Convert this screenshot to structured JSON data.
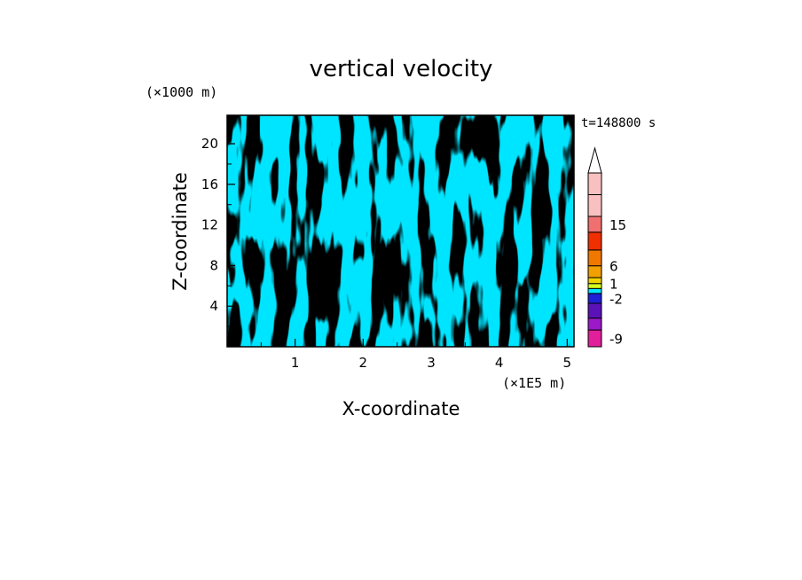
{
  "chart_data": {
    "type": "heatmap",
    "title": "vertical velocity",
    "xlabel": "X-coordinate",
    "ylabel": "Z-coordinate",
    "x_unit_label": "(×1E5 m)",
    "y_unit_label": "(×1000 m)",
    "time_label": "t=148800 s",
    "xlim": [
      0,
      5.1
    ],
    "ylim": [
      0,
      22.8
    ],
    "x_ticks": [
      {
        "value": 1,
        "label": "1"
      },
      {
        "value": 2,
        "label": "2"
      },
      {
        "value": 3,
        "label": "3"
      },
      {
        "value": 4,
        "label": "4"
      },
      {
        "value": 5,
        "label": "5"
      }
    ],
    "y_ticks": [
      {
        "value": 4,
        "label": "4"
      },
      {
        "value": 8,
        "label": "8"
      },
      {
        "value": 12,
        "label": "12"
      },
      {
        "value": 16,
        "label": "16"
      },
      {
        "value": 20,
        "label": "20"
      }
    ],
    "field_colors": {
      "negative": "#00e5ff",
      "positive": "#d7ff1f"
    },
    "colorbar": {
      "levels": [
        {
          "color": "#e11f9a"
        },
        {
          "color": "#9b19c9"
        },
        {
          "color": "#5a12b8"
        },
        {
          "color": "#1f1fd6"
        },
        {
          "color": "#00e5ff"
        },
        {
          "color": "#d7ff1f"
        },
        {
          "color": "#f0d400"
        },
        {
          "color": "#f0a000"
        },
        {
          "color": "#f07800"
        },
        {
          "color": "#f03000"
        },
        {
          "color": "#f07070"
        },
        {
          "color": "#f8c0c0"
        },
        {
          "color": "#f8c0c0"
        }
      ],
      "tick_labels": [
        {
          "label": "-9",
          "level_index": 0.5
        },
        {
          "label": "-2",
          "level_index": 3.5
        },
        {
          "label": "1",
          "level_index": 6
        },
        {
          "label": "6",
          "level_index": 8
        },
        {
          "label": "15",
          "level_index": 10.5
        }
      ]
    }
  }
}
